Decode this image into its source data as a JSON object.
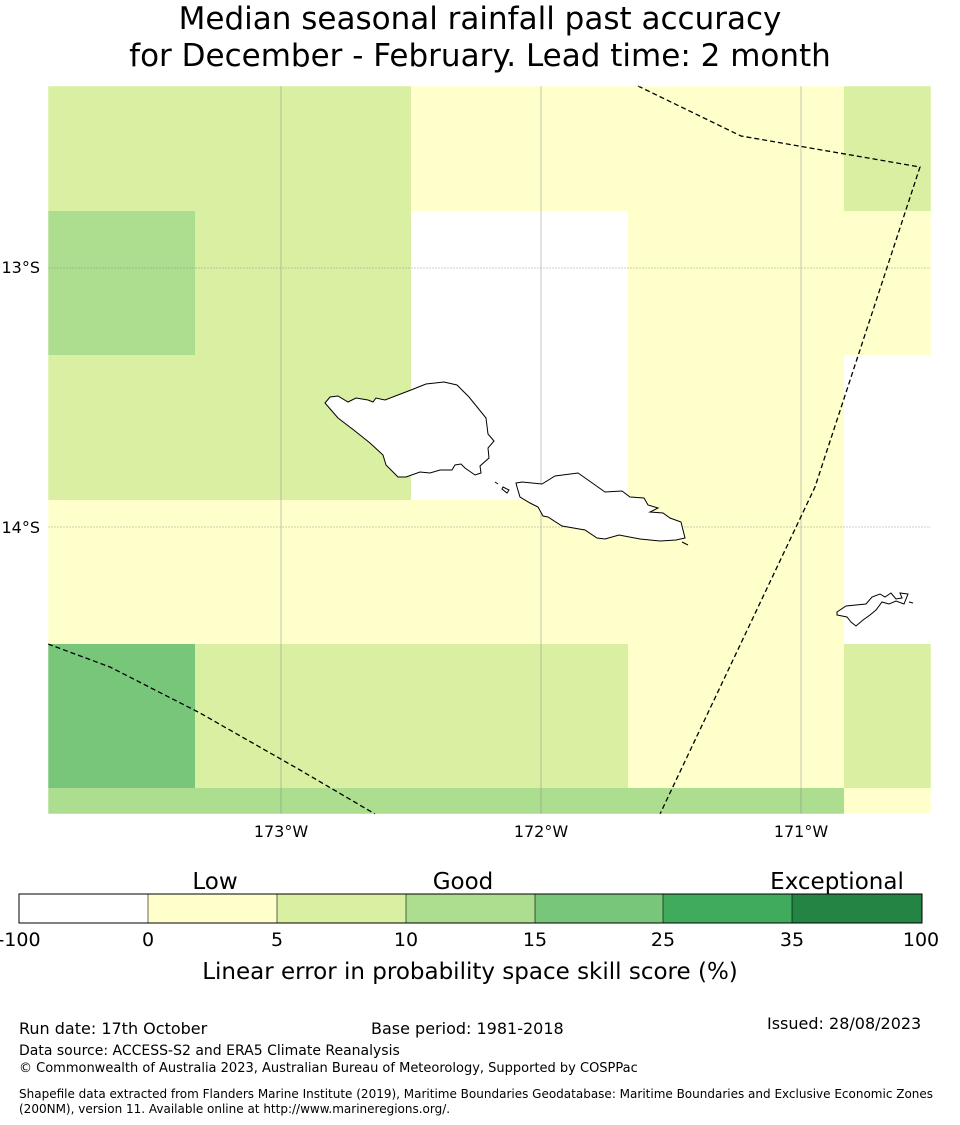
{
  "title": {
    "line1": "Median seasonal rainfall past accuracy",
    "line2": "for December - February. Lead time: 2 month"
  },
  "map": {
    "lat_labels": [
      "13°S",
      "14°S"
    ],
    "lon_labels": [
      "173°W",
      "172°W",
      "171°W"
    ],
    "region": "Samoa and American Samoa",
    "features": [
      "coastline",
      "eez-boundary",
      "graticule"
    ]
  },
  "legend": {
    "categories": [
      "Low",
      "Good",
      "Exceptional"
    ],
    "ticks": [
      "-100",
      "0",
      "5",
      "10",
      "15",
      "25",
      "35",
      "100"
    ],
    "colors": [
      "#ffffff",
      "#ffffcc",
      "#d9f0a3",
      "#addd8e",
      "#78c679",
      "#41ab5d",
      "#238443"
    ],
    "label": "Linear error in probability space skill score (%)"
  },
  "footer": {
    "run_date": "Run date: 17th October",
    "base_period": "Base period: 1981-2018",
    "issued": "Issued: 28/08/2023",
    "data_source": "Data source: ACCESS-S2 and ERA5 Climate Reanalysis",
    "copyright": "© Commonwealth of Australia 2023, Australian Bureau of Meteorology, Supported by COSPPac",
    "shapefile": "Shapefile data extracted from Flanders Marine Institute (2019), Maritime Boundaries Geodatabase: Maritime Boundaries and Exclusive Economic Zones (200NM), version 11. Available online at http://www.marineregions.org/."
  }
}
